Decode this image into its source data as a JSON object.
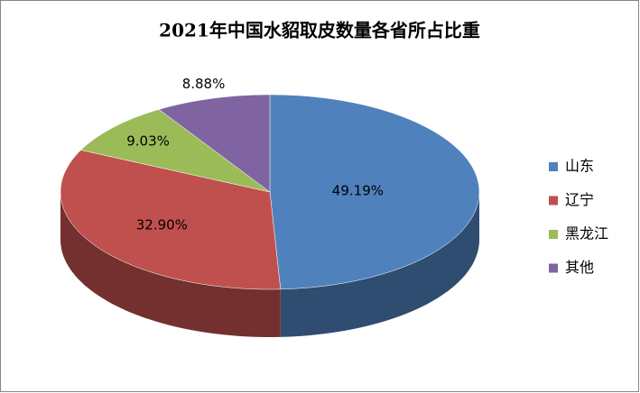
{
  "chart_data": {
    "type": "pie",
    "title": "2021年中国水貂取皮数量各省所占比重",
    "categories": [
      "山东",
      "辽宁",
      "黑龙江",
      "其他"
    ],
    "values": [
      49.19,
      32.9,
      9.03,
      8.88
    ],
    "value_labels": [
      "49.19%",
      "32.90%",
      "9.03%",
      "8.88%"
    ],
    "colors": [
      "#4f81bd",
      "#c0504d",
      "#9bbb59",
      "#8064a2"
    ],
    "legend": "right"
  }
}
